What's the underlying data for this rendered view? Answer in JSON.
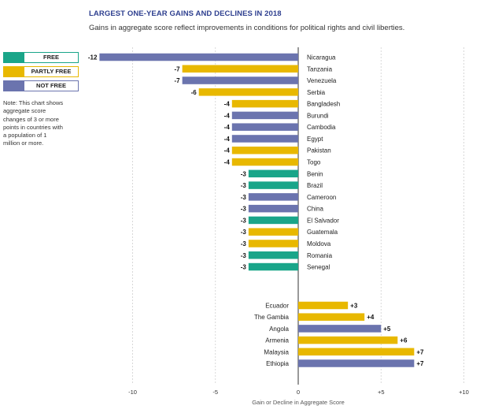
{
  "chart_data": {
    "type": "bar",
    "orientation": "horizontal",
    "title": "LARGEST ONE-YEAR GAINS AND DECLINES IN 2018",
    "subtitle": "Gains in aggregate score reflect improvements in conditions for political rights and civil liberties.",
    "xlabel": "Gain or Decline in Aggregate Score",
    "xlim": [
      -12,
      10
    ],
    "xticks": [
      -10,
      -5,
      0,
      5,
      10
    ],
    "xtick_labels": [
      "-10",
      "-5",
      "0",
      "+5",
      "+10"
    ],
    "grid": true,
    "legend_placement": "left",
    "legend": [
      {
        "key": "free",
        "label": "FREE",
        "color": "#1aa589"
      },
      {
        "key": "partly_free",
        "label": "PARTLY FREE",
        "color": "#e8b800"
      },
      {
        "key": "not_free",
        "label": "NOT FREE",
        "color": "#6b74ae"
      }
    ],
    "declines": [
      {
        "country": "Nicaragua",
        "value": -12,
        "label": "-12",
        "status": "not_free"
      },
      {
        "country": "Tanzania",
        "value": -7,
        "label": "-7",
        "status": "partly_free"
      },
      {
        "country": "Venezuela",
        "value": -7,
        "label": "-7",
        "status": "not_free"
      },
      {
        "country": "Serbia",
        "value": -6,
        "label": "-6",
        "status": "partly_free"
      },
      {
        "country": "Bangladesh",
        "value": -4,
        "label": "-4",
        "status": "partly_free"
      },
      {
        "country": "Burundi",
        "value": -4,
        "label": "-4",
        "status": "not_free"
      },
      {
        "country": "Cambodia",
        "value": -4,
        "label": "-4",
        "status": "not_free"
      },
      {
        "country": "Egypt",
        "value": -4,
        "label": "-4",
        "status": "not_free"
      },
      {
        "country": "Pakistan",
        "value": -4,
        "label": "-4",
        "status": "partly_free"
      },
      {
        "country": "Togo",
        "value": -4,
        "label": "-4",
        "status": "partly_free"
      },
      {
        "country": "Benin",
        "value": -3,
        "label": "-3",
        "status": "free"
      },
      {
        "country": "Brazil",
        "value": -3,
        "label": "-3",
        "status": "free"
      },
      {
        "country": "Cameroon",
        "value": -3,
        "label": "-3",
        "status": "not_free"
      },
      {
        "country": "China",
        "value": -3,
        "label": "-3",
        "status": "not_free"
      },
      {
        "country": "El Salvador",
        "value": -3,
        "label": "-3",
        "status": "free"
      },
      {
        "country": "Guatemala",
        "value": -3,
        "label": "-3",
        "status": "partly_free"
      },
      {
        "country": "Moldova",
        "value": -3,
        "label": "-3",
        "status": "partly_free"
      },
      {
        "country": "Romania",
        "value": -3,
        "label": "-3",
        "status": "free"
      },
      {
        "country": "Senegal",
        "value": -3,
        "label": "-3",
        "status": "free"
      }
    ],
    "gains": [
      {
        "country": "Ecuador",
        "value": 3,
        "label": "+3",
        "status": "partly_free"
      },
      {
        "country": "The Gambia",
        "value": 4,
        "label": "+4",
        "status": "partly_free"
      },
      {
        "country": "Angola",
        "value": 5,
        "label": "+5",
        "status": "not_free"
      },
      {
        "country": "Armenia",
        "value": 6,
        "label": "+6",
        "status": "partly_free"
      },
      {
        "country": "Malaysia",
        "value": 7,
        "label": "+7",
        "status": "partly_free"
      },
      {
        "country": "Ethiopia",
        "value": 7,
        "label": "+7",
        "status": "not_free"
      }
    ]
  },
  "note": "Note: This chart shows aggregate score changes of 3 or more points in countries with a population of 1 million or more."
}
